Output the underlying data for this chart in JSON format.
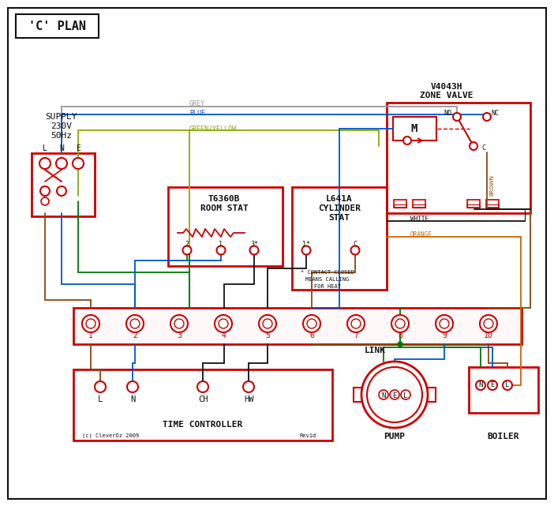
{
  "title": "'C' PLAN",
  "bg_color": "#ffffff",
  "red": "#cc0000",
  "blue": "#0055cc",
  "green": "#007700",
  "brown": "#8B4513",
  "grey": "#999999",
  "orange": "#cc6600",
  "black": "#111111",
  "green_yellow": "#88aa00",
  "supply_lines": [
    "SUPPLY",
    "230V",
    "50Hz"
  ],
  "zone_valve_lines": [
    "V4043H",
    "ZONE VALVE"
  ],
  "room_stat_lines": [
    "T6360B",
    "ROOM STAT"
  ],
  "cyl_stat_lines": [
    "L641A",
    "CYLINDER",
    "STAT"
  ],
  "time_ctrl_text": "TIME CONTROLLER",
  "pump_text": "PUMP",
  "boiler_text": "BOILER",
  "terminal_nums": [
    "1",
    "2",
    "3",
    "4",
    "5",
    "6",
    "7",
    "8",
    "9",
    "10"
  ],
  "link_text": "LINK",
  "contact_lines": [
    "* CONTACT CLOSED",
    "MEANS CALLING",
    "FOR HEAT"
  ],
  "copyright_text": "(c) CleverOz 2009",
  "rev_text": "Rev1d",
  "grey_label": "GREY",
  "blue_label": "BLUE",
  "gy_label": "GREEN/YELLOW",
  "brown_label": "BROWN",
  "white_label": "WHITE",
  "orange_label": "ORANGE",
  "no_label": "NO",
  "nc_label": "NC",
  "c_label": "C",
  "m_label": "M",
  "lne_labels": [
    "L",
    "N",
    "E"
  ],
  "nel_labels": [
    "N",
    "E",
    "L"
  ],
  "tc_labels": [
    "L",
    "N",
    "CH",
    "HW"
  ]
}
